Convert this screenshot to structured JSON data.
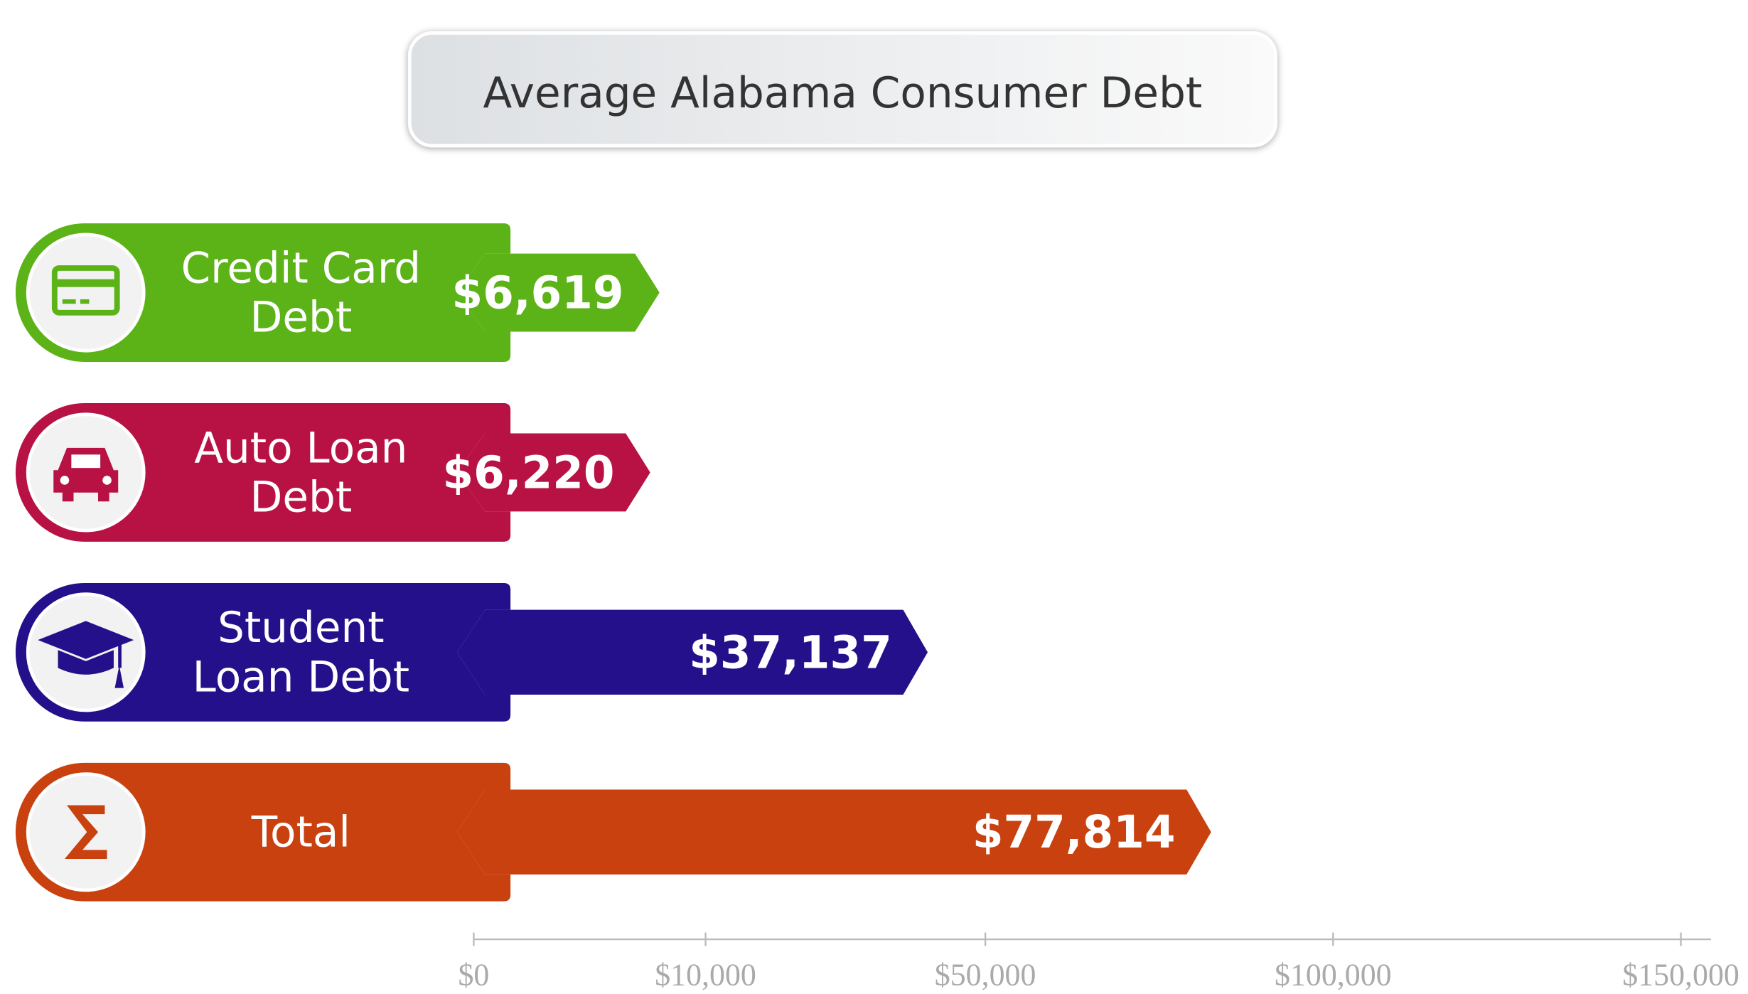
{
  "chart_data": {
    "type": "bar",
    "orientation": "horizontal",
    "title": "Average Alabama Consumer Debt",
    "categories": [
      "Credit Card Debt",
      "Auto Loan Debt",
      "Student Loan Debt",
      "Total"
    ],
    "values": [
      6619,
      6220,
      37137,
      77814
    ],
    "value_labels": [
      "$6,619",
      "$6,220",
      "$37,137",
      "$77,814"
    ],
    "colors": [
      "#5cb318",
      "#b81245",
      "#23108a",
      "#c8410f"
    ],
    "xlim": [
      0,
      150000
    ],
    "xticks": [
      {
        "value": 0,
        "label": "$0"
      },
      {
        "value": 10000,
        "label": "$10,000"
      },
      {
        "value": 50000,
        "label": "$50,000"
      },
      {
        "value": 100000,
        "label": "$100,000"
      },
      {
        "value": 150000,
        "label": "$150,000"
      }
    ]
  }
}
